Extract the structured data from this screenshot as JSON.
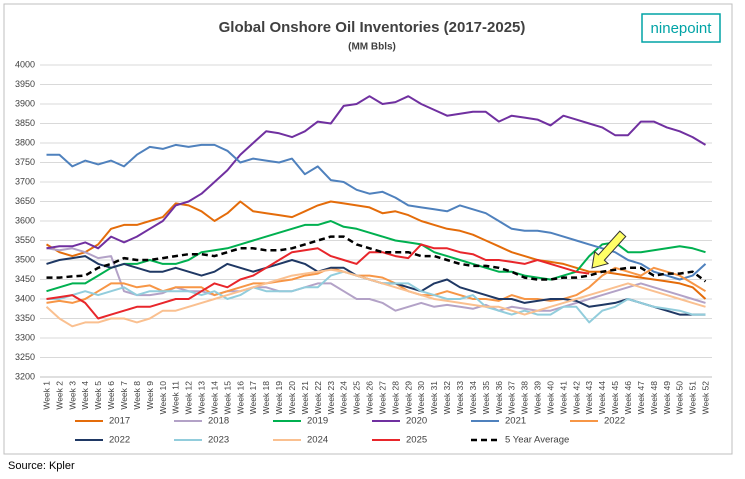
{
  "chart_data": {
    "type": "line",
    "title": "Global Onshore Oil Inventories (2017-2025)",
    "subtitle": "(MM Bbls)",
    "logo": "ninepoint",
    "source": "Source: Kpler",
    "categories": [
      "Week 1",
      "Week 2",
      "Week 3",
      "Week 4",
      "Week 5",
      "Week 6",
      "Week 7",
      "Week 8",
      "Week 9",
      "Week 10",
      "Week 11",
      "Week 12",
      "Week 13",
      "Week 14",
      "Week 15",
      "Week 16",
      "Week 17",
      "Week 18",
      "Week 19",
      "Week 20",
      "Week 21",
      "Week 22",
      "Week 23",
      "Week 24",
      "Week 25",
      "Week 26",
      "Week 27",
      "Week 28",
      "Week 29",
      "Week 30",
      "Week 31",
      "Week 32",
      "Week 33",
      "Week 34",
      "Week 35",
      "Week 36",
      "Week 37",
      "Week 38",
      "Week 39",
      "Week 40",
      "Week 41",
      "Week 42",
      "Week 43",
      "Week 44",
      "Week 45",
      "Week 46",
      "Week 47",
      "Week 48",
      "Week 49",
      "Week 50",
      "Week 51",
      "Week 52"
    ],
    "ylim": [
      3200,
      4000
    ],
    "yticks": [
      3200,
      3250,
      3300,
      3350,
      3400,
      3450,
      3500,
      3550,
      3600,
      3650,
      3700,
      3750,
      3800,
      3850,
      3900,
      3950,
      4000
    ],
    "grid": true,
    "series": [
      {
        "name": "2017",
        "color": "#e46c0a",
        "values": [
          3540,
          3520,
          3510,
          3520,
          3540,
          3580,
          3590,
          3590,
          3600,
          3610,
          3645,
          3640,
          3625,
          3600,
          3620,
          3650,
          3625,
          3620,
          3615,
          3610,
          3625,
          3640,
          3650,
          3645,
          3640,
          3635,
          3620,
          3625,
          3615,
          3600,
          3590,
          3580,
          3575,
          3565,
          3550,
          3535,
          3520,
          3510,
          3500,
          3495,
          3490,
          3480,
          3470,
          3470,
          3465,
          3460,
          3455,
          3450,
          3445,
          3440,
          3430,
          3400
        ]
      },
      {
        "name": "2018",
        "color": "#b3a2c7",
        "values": [
          3530,
          3525,
          3530,
          3520,
          3505,
          3510,
          3420,
          3410,
          3410,
          3415,
          3430,
          3420,
          3420,
          3410,
          3420,
          3420,
          3430,
          3430,
          3420,
          3420,
          3430,
          3440,
          3440,
          3420,
          3400,
          3400,
          3390,
          3370,
          3380,
          3390,
          3380,
          3385,
          3380,
          3375,
          3385,
          3370,
          3380,
          3375,
          3370,
          3370,
          3380,
          3390,
          3400,
          3410,
          3420,
          3430,
          3440,
          3430,
          3420,
          3410,
          3400,
          3390
        ]
      },
      {
        "name": "2019",
        "color": "#00b050",
        "values": [
          3420,
          3430,
          3440,
          3440,
          3460,
          3480,
          3490,
          3490,
          3500,
          3490,
          3490,
          3500,
          3520,
          3525,
          3530,
          3540,
          3550,
          3560,
          3570,
          3580,
          3590,
          3590,
          3600,
          3585,
          3580,
          3570,
          3560,
          3550,
          3545,
          3540,
          3520,
          3510,
          3500,
          3490,
          3480,
          3470,
          3470,
          3460,
          3455,
          3450,
          3460,
          3470,
          3510,
          3540,
          3545,
          3520,
          3520,
          3525,
          3530,
          3535,
          3530,
          3520
        ]
      },
      {
        "name": "2020",
        "color": "#7030a0",
        "values": [
          3530,
          3535,
          3535,
          3545,
          3530,
          3560,
          3545,
          3560,
          3580,
          3600,
          3640,
          3650,
          3670,
          3700,
          3730,
          3770,
          3800,
          3830,
          3825,
          3815,
          3830,
          3855,
          3850,
          3895,
          3900,
          3920,
          3900,
          3905,
          3920,
          3900,
          3885,
          3870,
          3875,
          3880,
          3880,
          3855,
          3870,
          3865,
          3860,
          3845,
          3870,
          3860,
          3850,
          3840,
          3820,
          3820,
          3855,
          3855,
          3840,
          3830,
          3815,
          3795
        ]
      },
      {
        "name": "2021",
        "color": "#4f81bd",
        "values": [
          3770,
          3770,
          3740,
          3755,
          3745,
          3755,
          3740,
          3770,
          3790,
          3785,
          3795,
          3790,
          3795,
          3795,
          3780,
          3750,
          3760,
          3755,
          3750,
          3760,
          3720,
          3740,
          3705,
          3700,
          3680,
          3670,
          3675,
          3660,
          3640,
          3635,
          3630,
          3625,
          3640,
          3630,
          3620,
          3600,
          3580,
          3575,
          3575,
          3570,
          3560,
          3550,
          3540,
          3530,
          3520,
          3500,
          3490,
          3470,
          3460,
          3450,
          3460,
          3490
        ]
      },
      {
        "name": "2022",
        "color": "#f79646",
        "values": [
          3390,
          3395,
          3390,
          3400,
          3420,
          3440,
          3440,
          3430,
          3435,
          3420,
          3430,
          3430,
          3430,
          3410,
          3420,
          3430,
          3440,
          3440,
          3445,
          3450,
          3460,
          3465,
          3480,
          3470,
          3460,
          3460,
          3455,
          3440,
          3420,
          3410,
          3410,
          3420,
          3410,
          3400,
          3400,
          3395,
          3410,
          3400,
          3400,
          3395,
          3400,
          3410,
          3430,
          3460,
          3480,
          3470,
          3460,
          3480,
          3470,
          3460,
          3440,
          3420
        ]
      },
      {
        "name": "2022",
        "color": "#1f3864",
        "values": [
          3490,
          3500,
          3505,
          3510,
          3490,
          3480,
          3490,
          3480,
          3470,
          3470,
          3480,
          3470,
          3460,
          3470,
          3490,
          3480,
          3470,
          3480,
          3490,
          3500,
          3490,
          3470,
          3480,
          3480,
          3460,
          3450,
          3440,
          3440,
          3430,
          3420,
          3440,
          3450,
          3430,
          3420,
          3410,
          3400,
          3400,
          3390,
          3395,
          3400,
          3400,
          3395,
          3380,
          3385,
          3390,
          3400,
          3390,
          3380,
          3370,
          3360,
          3360,
          3360
        ]
      },
      {
        "name": "2023",
        "color": "#92cddc",
        "values": [
          3400,
          3400,
          3410,
          3420,
          3410,
          3420,
          3430,
          3410,
          3420,
          3420,
          3420,
          3420,
          3410,
          3420,
          3400,
          3410,
          3430,
          3420,
          3420,
          3420,
          3430,
          3430,
          3460,
          3470,
          3460,
          3450,
          3440,
          3440,
          3440,
          3420,
          3410,
          3400,
          3400,
          3410,
          3380,
          3370,
          3360,
          3370,
          3360,
          3360,
          3380,
          3380,
          3340,
          3370,
          3380,
          3400,
          3390,
          3380,
          3375,
          3370,
          3360,
          3360
        ]
      },
      {
        "name": "2024",
        "color": "#fac090",
        "values": [
          3380,
          3350,
          3330,
          3340,
          3340,
          3350,
          3350,
          3340,
          3350,
          3370,
          3370,
          3380,
          3390,
          3400,
          3410,
          3420,
          3430,
          3440,
          3450,
          3460,
          3465,
          3470,
          3475,
          3470,
          3460,
          3450,
          3440,
          3430,
          3420,
          3410,
          3400,
          3395,
          3390,
          3385,
          3380,
          3380,
          3370,
          3360,
          3370,
          3380,
          3390,
          3400,
          3410,
          3420,
          3430,
          3440,
          3430,
          3420,
          3410,
          3400,
          3390,
          3380
        ]
      },
      {
        "name": "2025",
        "color": "#e8262b",
        "values": [
          3400,
          3405,
          3410,
          3390,
          3350,
          3360,
          3370,
          3380,
          3380,
          3390,
          3400,
          3400,
          3420,
          3440,
          3430,
          3450,
          3460,
          3480,
          3500,
          3520,
          3525,
          3530,
          3510,
          3500,
          3490,
          3520,
          3520,
          3510,
          3505,
          3540,
          3530,
          3530,
          3520,
          3515,
          3500,
          3500,
          3495,
          3490,
          3500,
          3490,
          3480,
          3470,
          3465,
          null,
          null,
          null,
          null,
          null,
          null,
          null,
          null,
          null
        ]
      },
      {
        "name": "5 Year Average",
        "color": "#000000",
        "dashed": true,
        "values": [
          3455,
          3455,
          3458,
          3460,
          3480,
          3490,
          3505,
          3500,
          3500,
          3505,
          3510,
          3515,
          3515,
          3510,
          3520,
          3530,
          3530,
          3525,
          3525,
          3530,
          3540,
          3550,
          3560,
          3560,
          3540,
          3530,
          3520,
          3520,
          3520,
          3510,
          3510,
          3500,
          3490,
          3485,
          3485,
          3480,
          3470,
          3455,
          3450,
          3450,
          3455,
          3455,
          3460,
          3470,
          3475,
          3480,
          3480,
          3460,
          3465,
          3465,
          3470,
          3445
        ]
      }
    ]
  }
}
